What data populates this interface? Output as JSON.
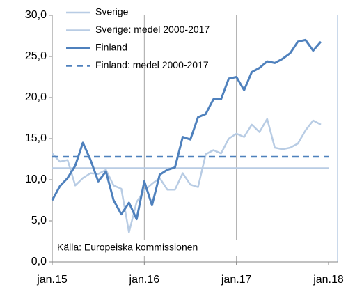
{
  "chart_data": {
    "type": "line",
    "categories": [
      "jan.15",
      null,
      null,
      null,
      null,
      null,
      null,
      null,
      null,
      null,
      null,
      null,
      "jan.16",
      null,
      null,
      null,
      null,
      null,
      null,
      null,
      null,
      null,
      null,
      null,
      "jan.17",
      null,
      null,
      null,
      null,
      null,
      null,
      null,
      null,
      null,
      null,
      null,
      "jan.18"
    ],
    "series": [
      {
        "name": "Sverige",
        "color": "#b8cce4",
        "values": [
          13.2,
          12.2,
          12.4,
          9.3,
          10.2,
          10.8,
          10.7,
          11.2,
          9.3,
          8.9,
          3.6,
          7.3,
          8.7,
          9.5,
          10.2,
          8.8,
          8.8,
          10.8,
          9.4,
          9.1,
          13.1,
          13.6,
          13.2,
          15.0,
          15.6,
          15.2,
          16.7,
          15.8,
          17.4,
          13.9,
          13.7,
          13.9,
          14.4,
          16.0,
          17.2,
          16.7,
          null
        ]
      },
      {
        "name": "Sverige: medel 2000-2017",
        "color": "#b8cce4",
        "value": 11.4
      },
      {
        "name": "Finland",
        "color": "#4f81bd",
        "values": [
          7.5,
          9.2,
          10.2,
          11.7,
          14.5,
          12.4,
          9.8,
          11.0,
          7.5,
          5.8,
          7.2,
          5.2,
          9.8,
          6.9,
          10.6,
          11.2,
          11.5,
          15.2,
          14.9,
          17.6,
          18.0,
          19.8,
          19.8,
          22.3,
          22.5,
          20.9,
          23.1,
          23.6,
          24.4,
          24.2,
          24.7,
          25.4,
          26.8,
          27.0,
          25.7,
          26.8,
          null
        ]
      },
      {
        "name": "Finland: medel 2000-2017",
        "color": "#4f81bd",
        "value": 12.8,
        "dashed": true
      }
    ],
    "ylim": [
      0,
      30
    ],
    "yticks": [
      {
        "value": 0,
        "label": "0,0"
      },
      {
        "value": 5,
        "label": "5,0"
      },
      {
        "value": 10,
        "label": "10,0"
      },
      {
        "value": 15,
        "label": "15,0"
      },
      {
        "value": 20,
        "label": "20,0"
      },
      {
        "value": 25,
        "label": "25,0"
      },
      {
        "value": 30,
        "label": "30,0"
      }
    ],
    "annotation": "Källa: Europeiska kommissionen"
  }
}
